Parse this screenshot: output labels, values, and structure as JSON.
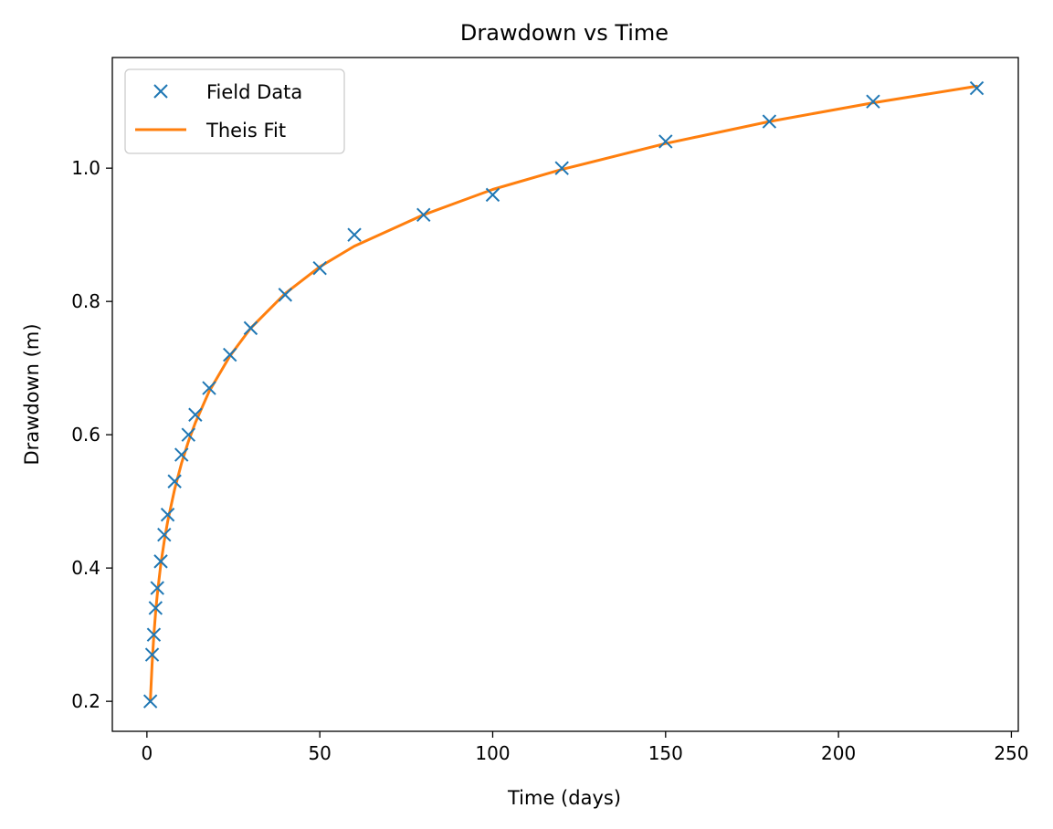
{
  "chart_data": {
    "type": "line",
    "title": "Drawdown vs Time",
    "xlabel": "Time (days)",
    "ylabel": "Drawdown (m)",
    "xlim": [
      -10,
      252
    ],
    "ylim": [
      0.155,
      1.166
    ],
    "xticks": [
      0,
      50,
      100,
      150,
      200,
      250
    ],
    "xtick_labels": [
      "0",
      "50",
      "100",
      "150",
      "200",
      "250"
    ],
    "yticks": [
      0.2,
      0.4,
      0.6,
      0.8,
      1.0
    ],
    "ytick_labels": [
      "0.2",
      "0.4",
      "0.6",
      "0.8",
      "1.0"
    ],
    "grid": false,
    "legend_position": "upper-left",
    "series": [
      {
        "name": "Field Data",
        "kind": "markers",
        "marker": "x",
        "color": "#1f77b4",
        "x": [
          1,
          1.5,
          2,
          2.5,
          3,
          4,
          5,
          6,
          8,
          10,
          12,
          14,
          18,
          24,
          30,
          40,
          50,
          60,
          80,
          100,
          120,
          150,
          180,
          210,
          240
        ],
        "y": [
          0.2,
          0.27,
          0.3,
          0.34,
          0.37,
          0.41,
          0.45,
          0.48,
          0.53,
          0.57,
          0.6,
          0.63,
          0.67,
          0.72,
          0.76,
          0.81,
          0.85,
          0.9,
          0.93,
          0.96,
          1.0,
          1.04,
          1.07,
          1.1,
          1.12
        ]
      },
      {
        "name": "Theis Fit",
        "kind": "line",
        "color": "#ff7f0e",
        "x": [
          1,
          1.5,
          2,
          2.5,
          3,
          4,
          5,
          6,
          8,
          10,
          12,
          14,
          18,
          24,
          30,
          40,
          50,
          60,
          80,
          100,
          120,
          150,
          180,
          210,
          240
        ],
        "y": [
          0.2,
          0.255,
          0.298,
          0.332,
          0.36,
          0.405,
          0.44,
          0.47,
          0.518,
          0.557,
          0.59,
          0.618,
          0.665,
          0.718,
          0.76,
          0.812,
          0.852,
          0.883,
          0.93,
          0.968,
          0.998,
          1.037,
          1.07,
          1.098,
          1.123
        ]
      }
    ]
  }
}
